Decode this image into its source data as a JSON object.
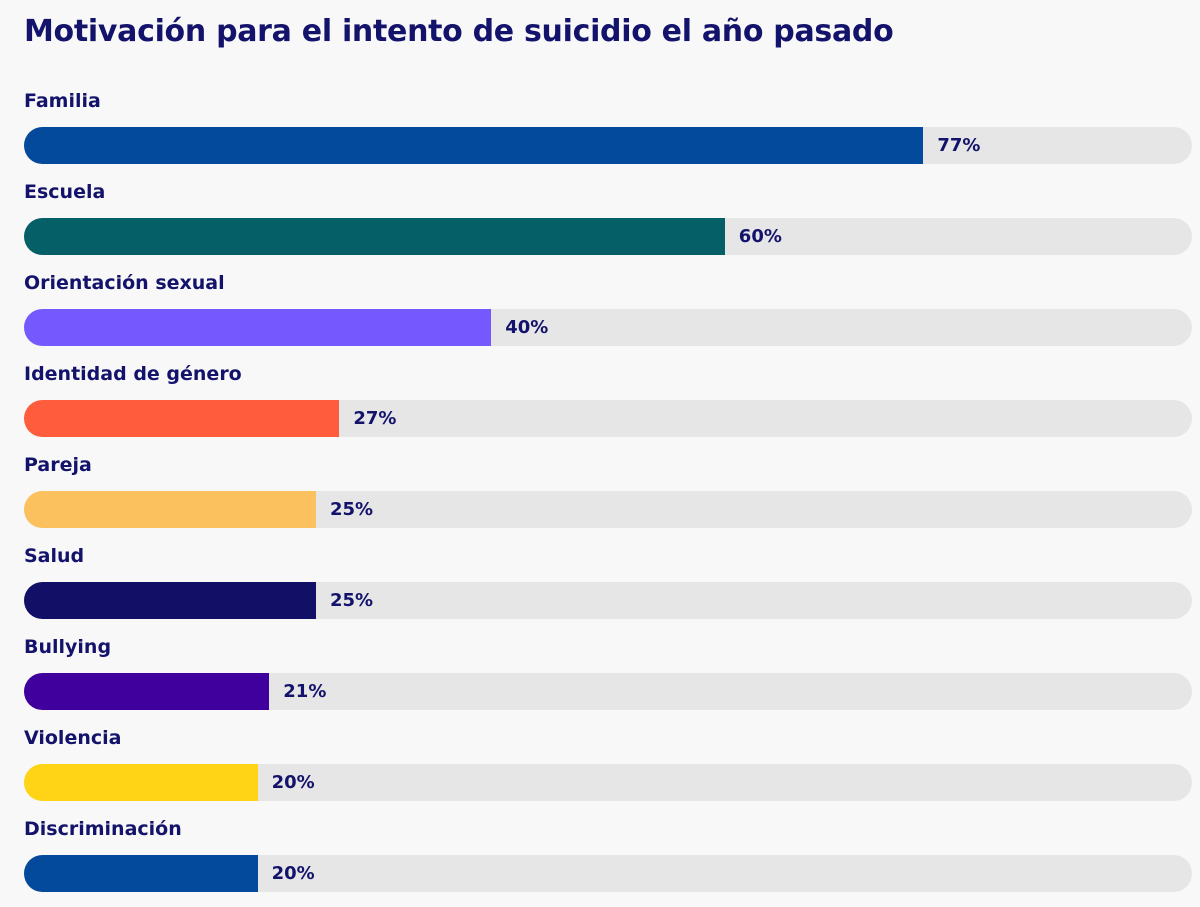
{
  "chart_data": {
    "type": "bar",
    "orientation": "horizontal",
    "title": "Motivación para el intento de suicidio el año pasado",
    "xlim": [
      0,
      100
    ],
    "unit": "%",
    "categories": [
      "Familia",
      "Escuela",
      "Orientación sexual",
      "Identidad de género",
      "Pareja",
      "Salud",
      "Bullying",
      "Violencia",
      "Discriminación"
    ],
    "values": [
      77,
      60,
      40,
      27,
      25,
      25,
      21,
      20,
      20
    ],
    "value_labels": [
      "77%",
      "60%",
      "40%",
      "27%",
      "25%",
      "25%",
      "21%",
      "20%",
      "20%"
    ],
    "colors": [
      "#03499c",
      "#055f66",
      "#7559ff",
      "#ff5c3d",
      "#fbc15e",
      "#120f66",
      "#40009e",
      "#ffd417",
      "#03499c"
    ],
    "track_color": "#e6e6e6",
    "text_color": "#14136b",
    "grid": false
  }
}
